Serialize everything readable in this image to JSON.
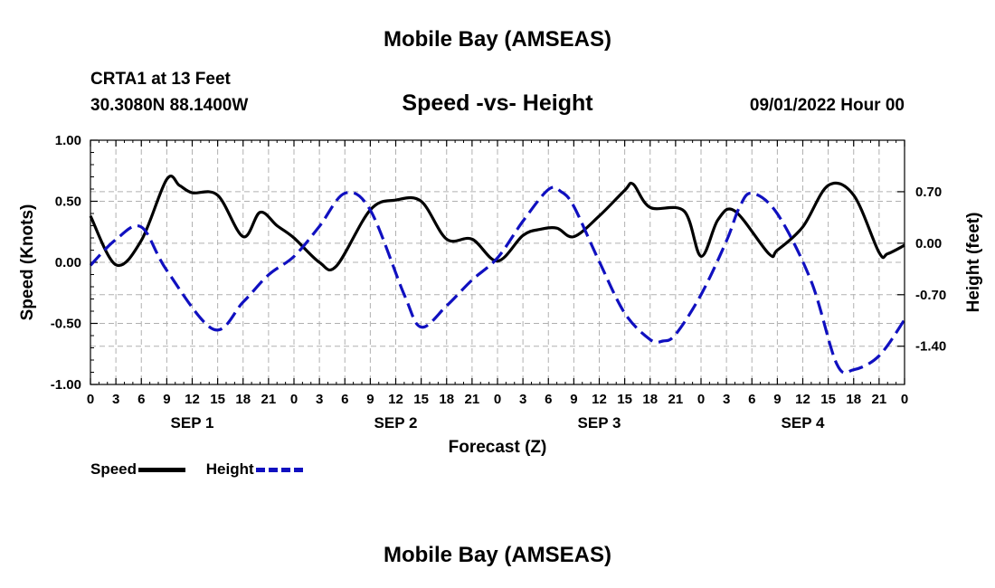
{
  "header": {
    "title": "Mobile Bay (AMSEAS)",
    "station": "CRTA1 at 13 Feet",
    "coords": "30.3080N  88.1400W",
    "chart_title": "Speed -vs- Height",
    "datetime": "09/01/2022 Hour 00"
  },
  "legend": {
    "speed": "Speed",
    "height": "Height"
  },
  "footer": {
    "title": "Mobile Bay (AMSEAS)"
  },
  "colors": {
    "speed": "#000000",
    "height": "#1010c0",
    "grid": "#b0b0b0"
  },
  "chart_data": {
    "type": "line",
    "title": "Speed -vs- Height",
    "xlabel": "Forecast (Z)",
    "ylabel": "Speed (Knots)",
    "y2label": "Height (feet)",
    "x_unit": "hours from 09/01/2022 00Z",
    "xlim": [
      0,
      96
    ],
    "ylim": [
      -1.0,
      1.0
    ],
    "y2lim": [
      -1.92,
      1.4
    ],
    "yticks": [
      "1.00",
      "0.50",
      "0.00",
      "-0.50",
      "-1.00"
    ],
    "y2ticks": [
      "0.70",
      "0.00",
      "-0.70",
      "-1.40"
    ],
    "xtick_labels": [
      "0",
      "3",
      "6",
      "9",
      "12",
      "15",
      "18",
      "21",
      "0",
      "3",
      "6",
      "9",
      "12",
      "15",
      "18",
      "21",
      "0",
      "3",
      "6",
      "9",
      "12",
      "15",
      "18",
      "21",
      "0",
      "3",
      "6",
      "9",
      "12",
      "15",
      "18",
      "21",
      "0"
    ],
    "day_labels": [
      "SEP 1",
      "SEP 2",
      "SEP 3",
      "SEP 4"
    ],
    "grid": true,
    "legend_position": "bottom-left",
    "series": [
      {
        "name": "Speed",
        "axis": "left",
        "style": "solid",
        "x": [
          0,
          3,
          6,
          9,
          10.5,
          12,
          15,
          18,
          20,
          22,
          24,
          27,
          29,
          33,
          36,
          39,
          42,
          45,
          48,
          51,
          53,
          55,
          57,
          60,
          63,
          64,
          66,
          70,
          72,
          74,
          76,
          80,
          81,
          84,
          87,
          90,
          93,
          94,
          96
        ],
        "y": [
          0.38,
          -0.02,
          0.18,
          0.68,
          0.63,
          0.57,
          0.55,
          0.21,
          0.41,
          0.3,
          0.2,
          0.0,
          -0.03,
          0.43,
          0.51,
          0.5,
          0.19,
          0.19,
          0.01,
          0.22,
          0.27,
          0.28,
          0.21,
          0.38,
          0.59,
          0.64,
          0.45,
          0.42,
          0.05,
          0.35,
          0.42,
          0.07,
          0.1,
          0.29,
          0.63,
          0.55,
          0.08,
          0.07,
          0.14
        ]
      },
      {
        "name": "Height",
        "axis": "right",
        "style": "dashed",
        "x": [
          0,
          3,
          6,
          9,
          14.5,
          18,
          21,
          24,
          27,
          30,
          33,
          37,
          39,
          42,
          45,
          48,
          51,
          54,
          55.5,
          57,
          60,
          63,
          66,
          67.5,
          69,
          72,
          75,
          76.5,
          78,
          81,
          85,
          88,
          90,
          93,
          96
        ],
        "y": [
          -0.3,
          0.05,
          0.22,
          -0.37,
          -1.17,
          -0.8,
          -0.43,
          -0.18,
          0.23,
          0.68,
          0.45,
          -0.7,
          -1.14,
          -0.85,
          -0.5,
          -0.2,
          0.3,
          0.73,
          0.7,
          0.5,
          -0.25,
          -0.95,
          -1.31,
          -1.33,
          -1.24,
          -0.7,
          0.03,
          0.48,
          0.68,
          0.4,
          -0.52,
          -1.64,
          -1.72,
          -1.53,
          -1.04
        ]
      }
    ]
  }
}
